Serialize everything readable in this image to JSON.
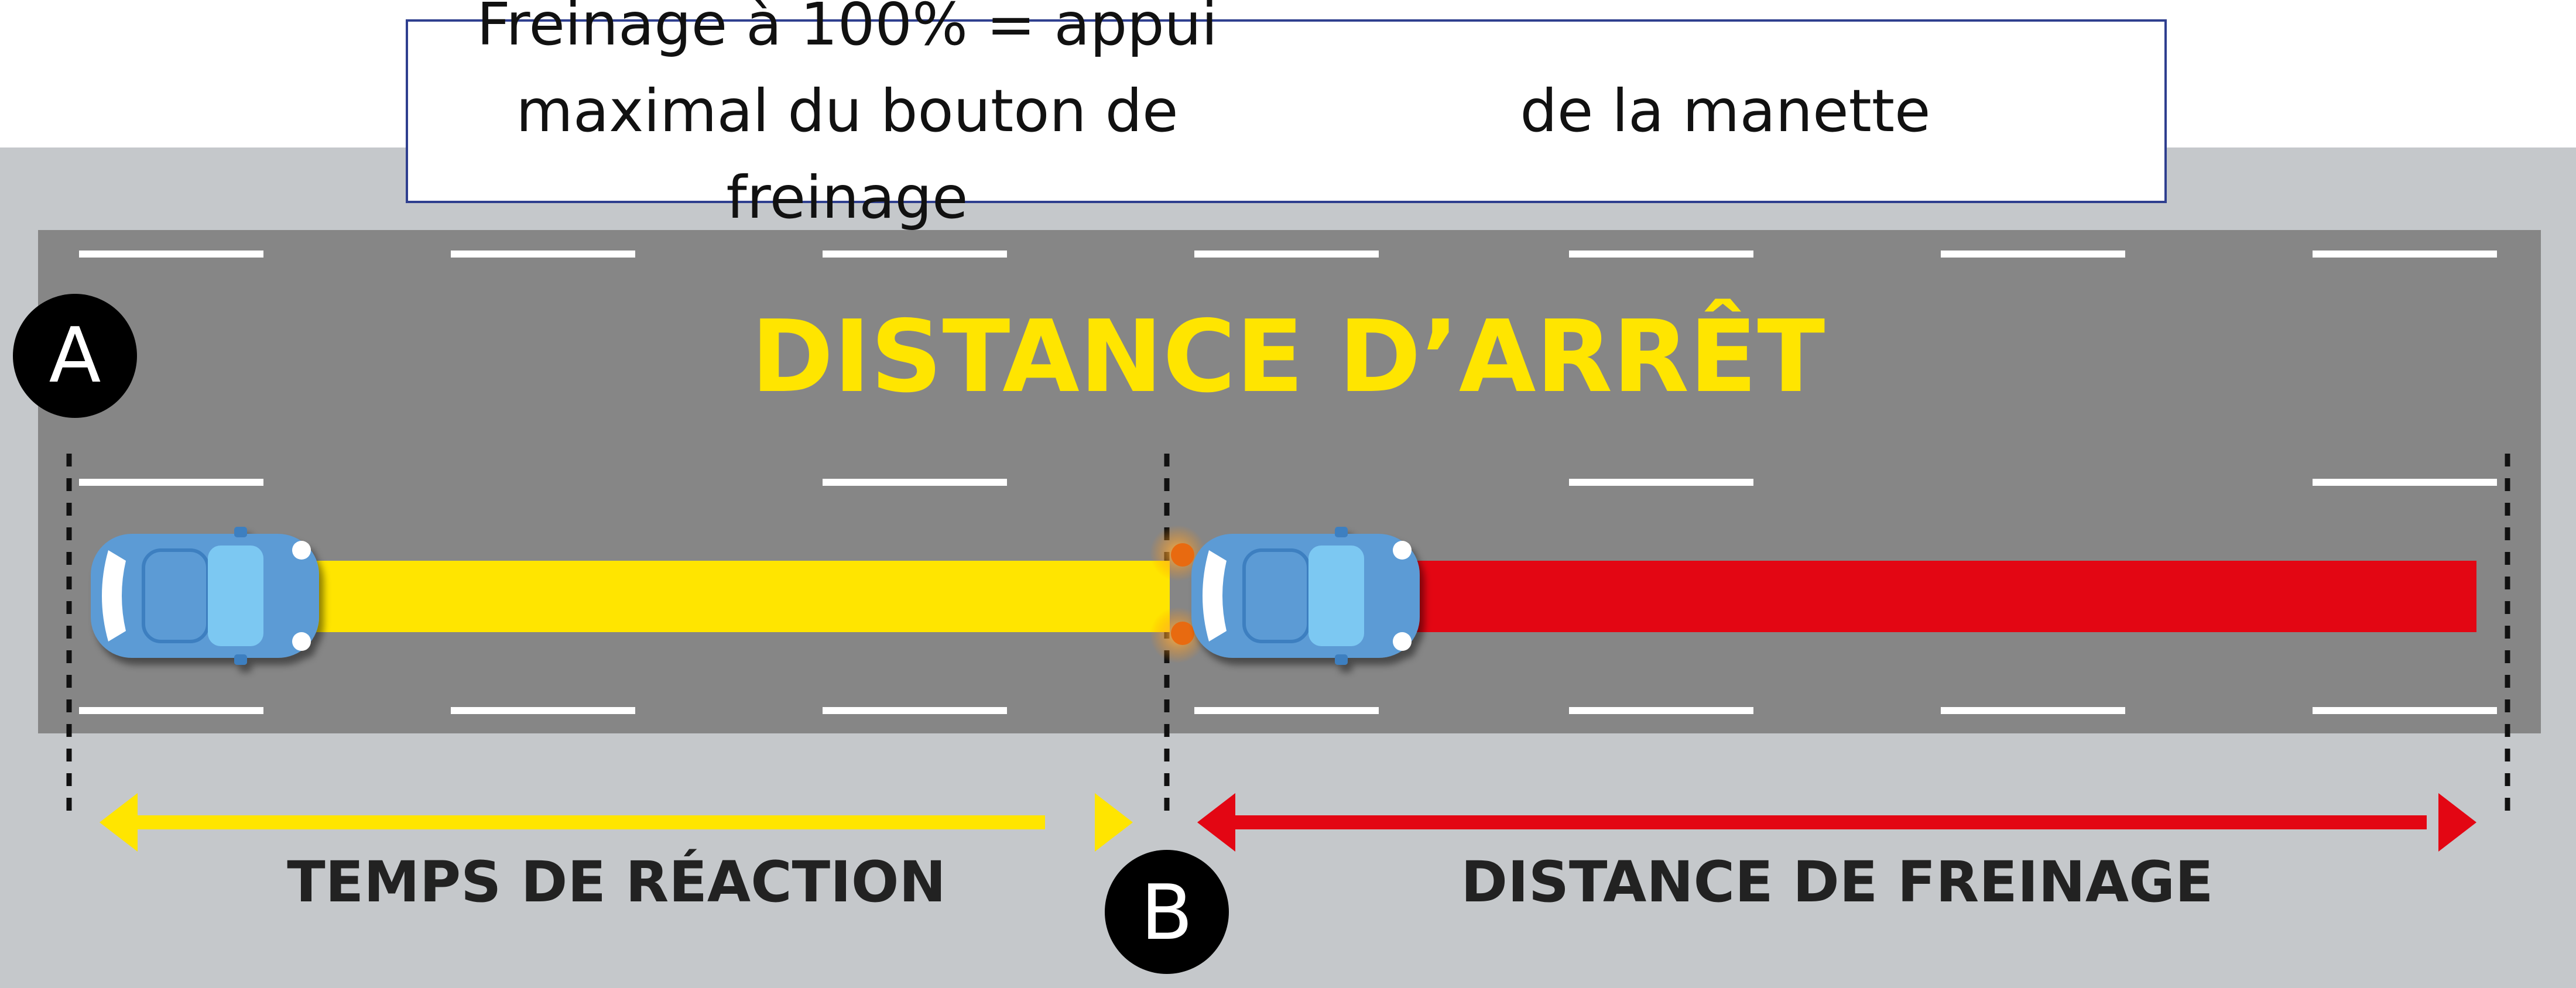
{
  "caption": {
    "line1": "Freinage à 100% = appui maximal du bouton de freinage",
    "line2": "de la manette"
  },
  "diagram": {
    "title": "DISTANCE D’ARRÊT",
    "marker_a": "A",
    "marker_b": "B",
    "segment_reaction": {
      "label": "TEMPS DE RÉACTION",
      "color": "#ffe500"
    },
    "segment_braking": {
      "label": "DISTANCE DE FREINAGE",
      "color": "#e30613"
    },
    "colors": {
      "road": "#868686",
      "roadside": "#c5c8cb",
      "lane_marking": "#ffffff",
      "title": "#ffe500",
      "car_body": "#5b9bd5",
      "car_glass": "#7cc8f2",
      "brake_lights": "#f07b1a",
      "marker_fill": "#000000"
    },
    "icons": [
      "car-icon",
      "brake-lights-icon",
      "double-arrow-icon"
    ]
  }
}
